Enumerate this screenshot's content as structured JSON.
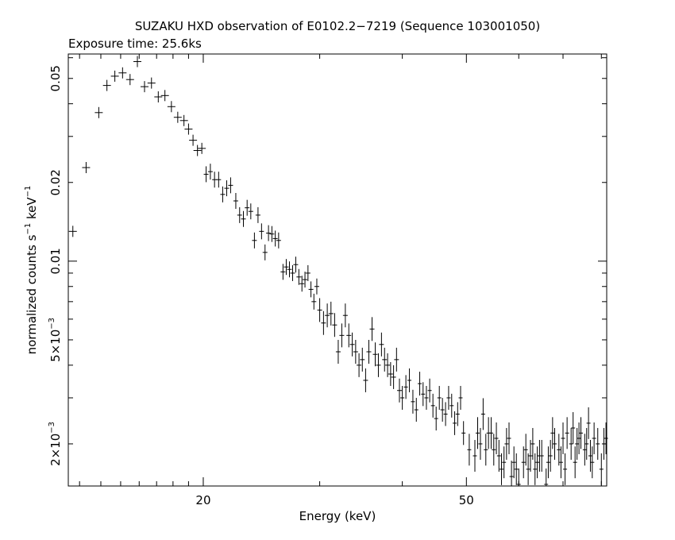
{
  "chart_data": {
    "type": "scatter",
    "title": "SUZAKU HXD observation of E0102.2−7219 (Sequence 103001050)",
    "subtitle": "Exposure time: 25.6ks",
    "xlabel": "Energy (keV)",
    "ylabel_parts": {
      "pre": "normalized counts s",
      "sup1": "−1",
      "mid": " keV",
      "sup2": "−1"
    },
    "xscale": "log",
    "yscale": "log",
    "xlim": [
      12.5,
      81.5
    ],
    "ylim": [
      0.00138,
      0.062
    ],
    "x_ticklabels": [
      {
        "value": 20,
        "label": "20"
      },
      {
        "value": 50,
        "label": "50"
      }
    ],
    "y_ticklabels": [
      {
        "value": 0.05,
        "label": "0.05",
        "kind": "plain"
      },
      {
        "value": 0.02,
        "label": "0.02",
        "kind": "plain"
      },
      {
        "value": 0.01,
        "label": "0.01",
        "kind": "plain"
      },
      {
        "value": 0.005,
        "base": "5×10",
        "exp": "−3",
        "kind": "sci"
      },
      {
        "value": 0.002,
        "base": "2×10",
        "exp": "−3",
        "kind": "sci"
      }
    ],
    "points": [
      [
        12.7,
        0.013
      ],
      [
        13.3,
        0.0228
      ],
      [
        13.9,
        0.037
      ],
      [
        14.3,
        0.047
      ],
      [
        14.7,
        0.051
      ],
      [
        15.1,
        0.0525
      ],
      [
        15.5,
        0.0495
      ],
      [
        15.9,
        0.058
      ],
      [
        16.3,
        0.0465
      ],
      [
        16.7,
        0.048
      ],
      [
        17.1,
        0.0425
      ],
      [
        17.5,
        0.043
      ],
      [
        17.9,
        0.039
      ],
      [
        18.3,
        0.0355
      ],
      [
        18.7,
        0.0345
      ],
      [
        19.0,
        0.032
      ],
      [
        19.3,
        0.029
      ],
      [
        19.6,
        0.0265
      ],
      [
        19.9,
        0.027
      ],
      [
        20.2,
        0.0215
      ],
      [
        20.5,
        0.022
      ],
      [
        20.8,
        0.0205
      ],
      [
        21.1,
        0.0205
      ],
      [
        21.4,
        0.018
      ],
      [
        21.7,
        0.019
      ],
      [
        22.0,
        0.0195
      ],
      [
        22.4,
        0.017
      ],
      [
        22.7,
        0.015
      ],
      [
        23.0,
        0.0145
      ],
      [
        23.3,
        0.016
      ],
      [
        23.6,
        0.0155
      ],
      [
        23.9,
        0.012
      ],
      [
        24.2,
        0.015
      ],
      [
        24.5,
        0.013
      ],
      [
        24.8,
        0.0108
      ],
      [
        25.1,
        0.0128
      ],
      [
        25.4,
        0.0127
      ],
      [
        25.7,
        0.0122
      ],
      [
        26.0,
        0.012
      ],
      [
        26.4,
        0.0091
      ],
      [
        26.7,
        0.0095
      ],
      [
        27.0,
        0.0093
      ],
      [
        27.3,
        0.009
      ],
      [
        27.6,
        0.0097
      ],
      [
        27.9,
        0.0087
      ],
      [
        28.2,
        0.0082
      ],
      [
        28.5,
        0.0085
      ],
      [
        28.8,
        0.009
      ],
      [
        29.1,
        0.0078
      ],
      [
        29.4,
        0.007
      ],
      [
        29.7,
        0.008
      ],
      [
        30.0,
        0.0065
      ],
      [
        30.4,
        0.0058
      ],
      [
        30.8,
        0.0062
      ],
      [
        31.2,
        0.0063
      ],
      [
        31.6,
        0.0057
      ],
      [
        32.0,
        0.0045
      ],
      [
        32.4,
        0.0052
      ],
      [
        32.8,
        0.0062
      ],
      [
        33.2,
        0.0052
      ],
      [
        33.6,
        0.0048
      ],
      [
        34.0,
        0.0045
      ],
      [
        34.4,
        0.004
      ],
      [
        34.8,
        0.0042
      ],
      [
        35.2,
        0.0035
      ],
      [
        35.6,
        0.0045
      ],
      [
        36.0,
        0.0055
      ],
      [
        36.4,
        0.0044
      ],
      [
        36.8,
        0.004
      ],
      [
        37.2,
        0.0048
      ],
      [
        37.6,
        0.0042
      ],
      [
        38.0,
        0.004
      ],
      [
        38.4,
        0.0037
      ],
      [
        38.8,
        0.0036
      ],
      [
        39.2,
        0.0042
      ],
      [
        39.6,
        0.0032
      ],
      [
        40.0,
        0.003
      ],
      [
        40.5,
        0.0033
      ],
      [
        41.0,
        0.0035
      ],
      [
        41.5,
        0.0029
      ],
      [
        42.0,
        0.0027
      ],
      [
        42.5,
        0.0034
      ],
      [
        43.0,
        0.0031
      ],
      [
        43.5,
        0.003
      ],
      [
        44.0,
        0.0032
      ],
      [
        44.5,
        0.0028
      ],
      [
        45.0,
        0.0025
      ],
      [
        45.5,
        0.003
      ],
      [
        46.0,
        0.0027
      ],
      [
        46.5,
        0.0026
      ],
      [
        47.0,
        0.003
      ],
      [
        47.5,
        0.0028
      ],
      [
        48.0,
        0.0024
      ],
      [
        48.5,
        0.0026
      ],
      [
        49.0,
        0.003
      ],
      [
        49.5,
        0.0022
      ],
      [
        50.5,
        0.0019
      ],
      [
        51.5,
        0.0018
      ],
      [
        52.0,
        0.0022
      ],
      [
        52.5,
        0.002
      ],
      [
        53.0,
        0.0026
      ],
      [
        53.5,
        0.0019
      ],
      [
        54.0,
        0.0022
      ],
      [
        54.5,
        0.0022
      ],
      [
        55.0,
        0.0019
      ],
      [
        55.5,
        0.0021
      ],
      [
        56.0,
        0.0018
      ],
      [
        56.5,
        0.0016
      ],
      [
        57.0,
        0.0017
      ],
      [
        57.5,
        0.002
      ],
      [
        58.0,
        0.0021
      ],
      [
        58.5,
        0.0015
      ],
      [
        59.0,
        0.0017
      ],
      [
        59.5,
        0.0016
      ],
      [
        60.0,
        0.0014
      ],
      [
        61.0,
        0.0017
      ],
      [
        61.5,
        0.0019
      ],
      [
        62.0,
        0.0016
      ],
      [
        62.5,
        0.0018
      ],
      [
        63.0,
        0.002
      ],
      [
        63.5,
        0.0016
      ],
      [
        64.0,
        0.0017
      ],
      [
        64.5,
        0.0018
      ],
      [
        65.0,
        0.0018
      ],
      [
        66.0,
        0.0014
      ],
      [
        66.5,
        0.0017
      ],
      [
        67.0,
        0.0018
      ],
      [
        67.5,
        0.0022
      ],
      [
        68.0,
        0.002
      ],
      [
        69.0,
        0.0019
      ],
      [
        69.5,
        0.0017
      ],
      [
        70.0,
        0.0021
      ],
      [
        70.5,
        0.0016
      ],
      [
        71.0,
        0.0022
      ],
      [
        72.0,
        0.002
      ],
      [
        72.5,
        0.0023
      ],
      [
        73.0,
        0.0017
      ],
      [
        73.5,
        0.002
      ],
      [
        74.0,
        0.0021
      ],
      [
        74.5,
        0.0022
      ],
      [
        75.5,
        0.0019
      ],
      [
        76.0,
        0.002
      ],
      [
        76.5,
        0.0024
      ],
      [
        77.0,
        0.0018
      ],
      [
        77.5,
        0.0017
      ],
      [
        78.0,
        0.0021
      ],
      [
        79.0,
        0.002
      ],
      [
        80.0,
        0.0016
      ],
      [
        80.7,
        0.002
      ],
      [
        81.3,
        0.0021
      ]
    ],
    "grid": false,
    "legend": "none"
  }
}
